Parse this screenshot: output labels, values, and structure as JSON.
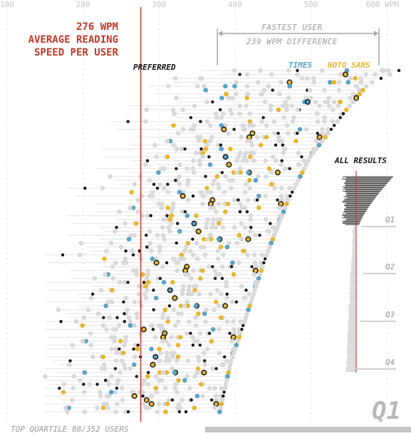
{
  "chart_data": {
    "type": "scatter",
    "x_axis": {
      "min": 100,
      "max": 600,
      "ticks": [
        100,
        200,
        300,
        400,
        500
      ],
      "last_tick_label": "600 WPM"
    },
    "average": {
      "value": 276,
      "label_lines": [
        "276 WPM",
        "AVERAGE READING",
        "SPEED PER USER"
      ]
    },
    "legend": {
      "preferred": "PREFERRED",
      "times": "TIMES",
      "noto_sans": "NOTO SANS"
    },
    "colors": {
      "times": "#5aa3c6",
      "noto_sans": "#e6b730",
      "preferred": "#111111",
      "other": "#d9d9d9",
      "average_line": "#c0392b",
      "connector": "#e4e4e4"
    },
    "fastest_annotation": {
      "line1": "FASTEST USER",
      "line2": "239 WPM DIFFERENCE",
      "from": 377,
      "to": 616
    },
    "all_results": {
      "title": "ALL RESULTS",
      "quartiles": [
        "Q1",
        "Q2",
        "Q3",
        "Q4"
      ]
    },
    "quartile_label": "Q1",
    "footer": "TOP QUARTILE 88/352 USERS"
  }
}
